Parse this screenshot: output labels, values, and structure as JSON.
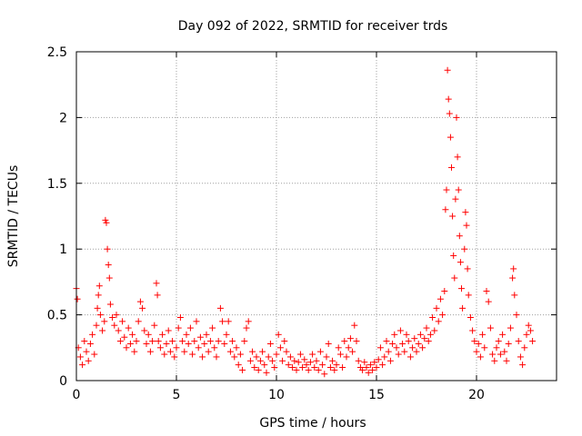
{
  "chart_data": {
    "type": "scatter",
    "title": "Day 092 of 2022, SRMTID for receiver trds",
    "xlabel": "GPS time / hours",
    "ylabel": "SRMTID / TECUs",
    "xlim": [
      0,
      24
    ],
    "ylim": [
      0,
      2.5
    ],
    "x_ticks": [
      "0",
      "5",
      "10",
      "15",
      "20"
    ],
    "y_ticks": [
      "0",
      "0.5",
      "1",
      "1.5",
      "2",
      "2.5"
    ],
    "grid": true,
    "marker": "+",
    "marker_color": "#ff0000",
    "series": [
      {
        "name": "SRMTID",
        "points": [
          [
            0.0,
            0.7
          ],
          [
            0.05,
            0.62
          ],
          [
            0.1,
            0.25
          ],
          [
            0.2,
            0.18
          ],
          [
            0.3,
            0.12
          ],
          [
            0.4,
            0.3
          ],
          [
            0.5,
            0.22
          ],
          [
            0.6,
            0.15
          ],
          [
            0.7,
            0.28
          ],
          [
            0.8,
            0.35
          ],
          [
            0.9,
            0.2
          ],
          [
            1.0,
            0.42
          ],
          [
            1.05,
            0.55
          ],
          [
            1.1,
            0.65
          ],
          [
            1.15,
            0.72
          ],
          [
            1.2,
            0.5
          ],
          [
            1.3,
            0.38
          ],
          [
            1.4,
            0.45
          ],
          [
            1.45,
            1.22
          ],
          [
            1.5,
            1.2
          ],
          [
            1.55,
            1.0
          ],
          [
            1.6,
            0.88
          ],
          [
            1.65,
            0.78
          ],
          [
            1.7,
            0.58
          ],
          [
            1.8,
            0.48
          ],
          [
            1.9,
            0.42
          ],
          [
            2.0,
            0.5
          ],
          [
            2.1,
            0.38
          ],
          [
            2.2,
            0.3
          ],
          [
            2.3,
            0.45
          ],
          [
            2.4,
            0.33
          ],
          [
            2.5,
            0.25
          ],
          [
            2.6,
            0.4
          ],
          [
            2.7,
            0.28
          ],
          [
            2.8,
            0.35
          ],
          [
            2.9,
            0.22
          ],
          [
            3.0,
            0.3
          ],
          [
            3.1,
            0.45
          ],
          [
            3.2,
            0.6
          ],
          [
            3.3,
            0.55
          ],
          [
            3.4,
            0.38
          ],
          [
            3.5,
            0.28
          ],
          [
            3.6,
            0.35
          ],
          [
            3.7,
            0.22
          ],
          [
            3.8,
            0.3
          ],
          [
            3.9,
            0.42
          ],
          [
            4.0,
            0.74
          ],
          [
            4.05,
            0.65
          ],
          [
            4.1,
            0.3
          ],
          [
            4.2,
            0.25
          ],
          [
            4.3,
            0.35
          ],
          [
            4.4,
            0.2
          ],
          [
            4.5,
            0.28
          ],
          [
            4.6,
            0.38
          ],
          [
            4.7,
            0.22
          ],
          [
            4.8,
            0.3
          ],
          [
            4.9,
            0.18
          ],
          [
            5.0,
            0.25
          ],
          [
            5.1,
            0.4
          ],
          [
            5.2,
            0.48
          ],
          [
            5.3,
            0.3
          ],
          [
            5.4,
            0.22
          ],
          [
            5.5,
            0.35
          ],
          [
            5.6,
            0.28
          ],
          [
            5.7,
            0.4
          ],
          [
            5.8,
            0.2
          ],
          [
            5.9,
            0.3
          ],
          [
            6.0,
            0.45
          ],
          [
            6.1,
            0.25
          ],
          [
            6.2,
            0.33
          ],
          [
            6.3,
            0.18
          ],
          [
            6.4,
            0.28
          ],
          [
            6.5,
            0.35
          ],
          [
            6.6,
            0.22
          ],
          [
            6.7,
            0.3
          ],
          [
            6.8,
            0.4
          ],
          [
            6.9,
            0.25
          ],
          [
            7.0,
            0.18
          ],
          [
            7.1,
            0.3
          ],
          [
            7.2,
            0.55
          ],
          [
            7.3,
            0.45
          ],
          [
            7.4,
            0.28
          ],
          [
            7.5,
            0.35
          ],
          [
            7.6,
            0.45
          ],
          [
            7.7,
            0.22
          ],
          [
            7.8,
            0.3
          ],
          [
            7.9,
            0.18
          ],
          [
            8.0,
            0.25
          ],
          [
            8.1,
            0.12
          ],
          [
            8.2,
            0.2
          ],
          [
            8.3,
            0.08
          ],
          [
            8.4,
            0.3
          ],
          [
            8.5,
            0.4
          ],
          [
            8.6,
            0.45
          ],
          [
            8.7,
            0.15
          ],
          [
            8.8,
            0.22
          ],
          [
            8.9,
            0.1
          ],
          [
            9.0,
            0.18
          ],
          [
            9.1,
            0.08
          ],
          [
            9.2,
            0.15
          ],
          [
            9.3,
            0.22
          ],
          [
            9.4,
            0.12
          ],
          [
            9.5,
            0.06
          ],
          [
            9.6,
            0.18
          ],
          [
            9.7,
            0.28
          ],
          [
            9.8,
            0.15
          ],
          [
            9.9,
            0.1
          ],
          [
            10.0,
            0.2
          ],
          [
            10.1,
            0.35
          ],
          [
            10.2,
            0.25
          ],
          [
            10.3,
            0.15
          ],
          [
            10.4,
            0.3
          ],
          [
            10.5,
            0.22
          ],
          [
            10.6,
            0.12
          ],
          [
            10.7,
            0.18
          ],
          [
            10.8,
            0.1
          ],
          [
            10.9,
            0.15
          ],
          [
            11.0,
            0.08
          ],
          [
            11.1,
            0.14
          ],
          [
            11.2,
            0.2
          ],
          [
            11.3,
            0.1
          ],
          [
            11.4,
            0.16
          ],
          [
            11.5,
            0.12
          ],
          [
            11.6,
            0.08
          ],
          [
            11.7,
            0.14
          ],
          [
            11.8,
            0.2
          ],
          [
            11.9,
            0.1
          ],
          [
            12.0,
            0.15
          ],
          [
            12.1,
            0.08
          ],
          [
            12.2,
            0.22
          ],
          [
            12.3,
            0.12
          ],
          [
            12.4,
            0.05
          ],
          [
            12.5,
            0.18
          ],
          [
            12.6,
            0.28
          ],
          [
            12.7,
            0.1
          ],
          [
            12.8,
            0.15
          ],
          [
            12.9,
            0.08
          ],
          [
            13.0,
            0.12
          ],
          [
            13.1,
            0.25
          ],
          [
            13.2,
            0.2
          ],
          [
            13.3,
            0.1
          ],
          [
            13.4,
            0.3
          ],
          [
            13.5,
            0.18
          ],
          [
            13.6,
            0.25
          ],
          [
            13.7,
            0.32
          ],
          [
            13.8,
            0.22
          ],
          [
            13.9,
            0.42
          ],
          [
            14.0,
            0.3
          ],
          [
            14.1,
            0.15
          ],
          [
            14.2,
            0.1
          ],
          [
            14.3,
            0.08
          ],
          [
            14.4,
            0.14
          ],
          [
            14.5,
            0.1
          ],
          [
            14.6,
            0.06
          ],
          [
            14.7,
            0.12
          ],
          [
            14.8,
            0.08
          ],
          [
            14.9,
            0.14
          ],
          [
            15.0,
            0.1
          ],
          [
            15.1,
            0.16
          ],
          [
            15.2,
            0.25
          ],
          [
            15.3,
            0.12
          ],
          [
            15.4,
            0.18
          ],
          [
            15.5,
            0.3
          ],
          [
            15.6,
            0.22
          ],
          [
            15.7,
            0.15
          ],
          [
            15.8,
            0.28
          ],
          [
            15.9,
            0.35
          ],
          [
            16.0,
            0.25
          ],
          [
            16.1,
            0.2
          ],
          [
            16.2,
            0.38
          ],
          [
            16.3,
            0.28
          ],
          [
            16.4,
            0.22
          ],
          [
            16.5,
            0.35
          ],
          [
            16.6,
            0.3
          ],
          [
            16.7,
            0.18
          ],
          [
            16.8,
            0.25
          ],
          [
            16.9,
            0.32
          ],
          [
            17.0,
            0.22
          ],
          [
            17.1,
            0.28
          ],
          [
            17.2,
            0.35
          ],
          [
            17.3,
            0.25
          ],
          [
            17.4,
            0.32
          ],
          [
            17.5,
            0.4
          ],
          [
            17.6,
            0.3
          ],
          [
            17.7,
            0.35
          ],
          [
            17.8,
            0.48
          ],
          [
            17.9,
            0.38
          ],
          [
            18.0,
            0.55
          ],
          [
            18.1,
            0.45
          ],
          [
            18.2,
            0.62
          ],
          [
            18.3,
            0.5
          ],
          [
            18.4,
            0.68
          ],
          [
            18.45,
            1.3
          ],
          [
            18.5,
            1.45
          ],
          [
            18.55,
            2.36
          ],
          [
            18.6,
            2.14
          ],
          [
            18.65,
            2.03
          ],
          [
            18.7,
            1.85
          ],
          [
            18.75,
            1.62
          ],
          [
            18.8,
            1.25
          ],
          [
            18.85,
            0.95
          ],
          [
            18.9,
            0.78
          ],
          [
            18.95,
            1.38
          ],
          [
            19.0,
            2.0
          ],
          [
            19.05,
            1.7
          ],
          [
            19.1,
            1.45
          ],
          [
            19.15,
            1.1
          ],
          [
            19.2,
            0.9
          ],
          [
            19.25,
            0.7
          ],
          [
            19.3,
            0.55
          ],
          [
            19.4,
            1.0
          ],
          [
            19.45,
            1.28
          ],
          [
            19.5,
            1.18
          ],
          [
            19.55,
            0.85
          ],
          [
            19.6,
            0.65
          ],
          [
            19.7,
            0.48
          ],
          [
            19.8,
            0.38
          ],
          [
            19.9,
            0.3
          ],
          [
            20.0,
            0.22
          ],
          [
            20.1,
            0.28
          ],
          [
            20.2,
            0.18
          ],
          [
            20.3,
            0.35
          ],
          [
            20.4,
            0.25
          ],
          [
            20.5,
            0.68
          ],
          [
            20.6,
            0.6
          ],
          [
            20.7,
            0.4
          ],
          [
            20.8,
            0.2
          ],
          [
            20.9,
            0.15
          ],
          [
            21.0,
            0.25
          ],
          [
            21.1,
            0.3
          ],
          [
            21.2,
            0.2
          ],
          [
            21.3,
            0.35
          ],
          [
            21.4,
            0.22
          ],
          [
            21.5,
            0.15
          ],
          [
            21.6,
            0.28
          ],
          [
            21.7,
            0.4
          ],
          [
            21.8,
            0.78
          ],
          [
            21.85,
            0.85
          ],
          [
            21.9,
            0.65
          ],
          [
            22.0,
            0.5
          ],
          [
            22.1,
            0.3
          ],
          [
            22.2,
            0.18
          ],
          [
            22.3,
            0.12
          ],
          [
            22.4,
            0.25
          ],
          [
            22.5,
            0.35
          ],
          [
            22.6,
            0.42
          ],
          [
            22.7,
            0.38
          ],
          [
            22.8,
            0.3
          ]
        ]
      }
    ]
  }
}
